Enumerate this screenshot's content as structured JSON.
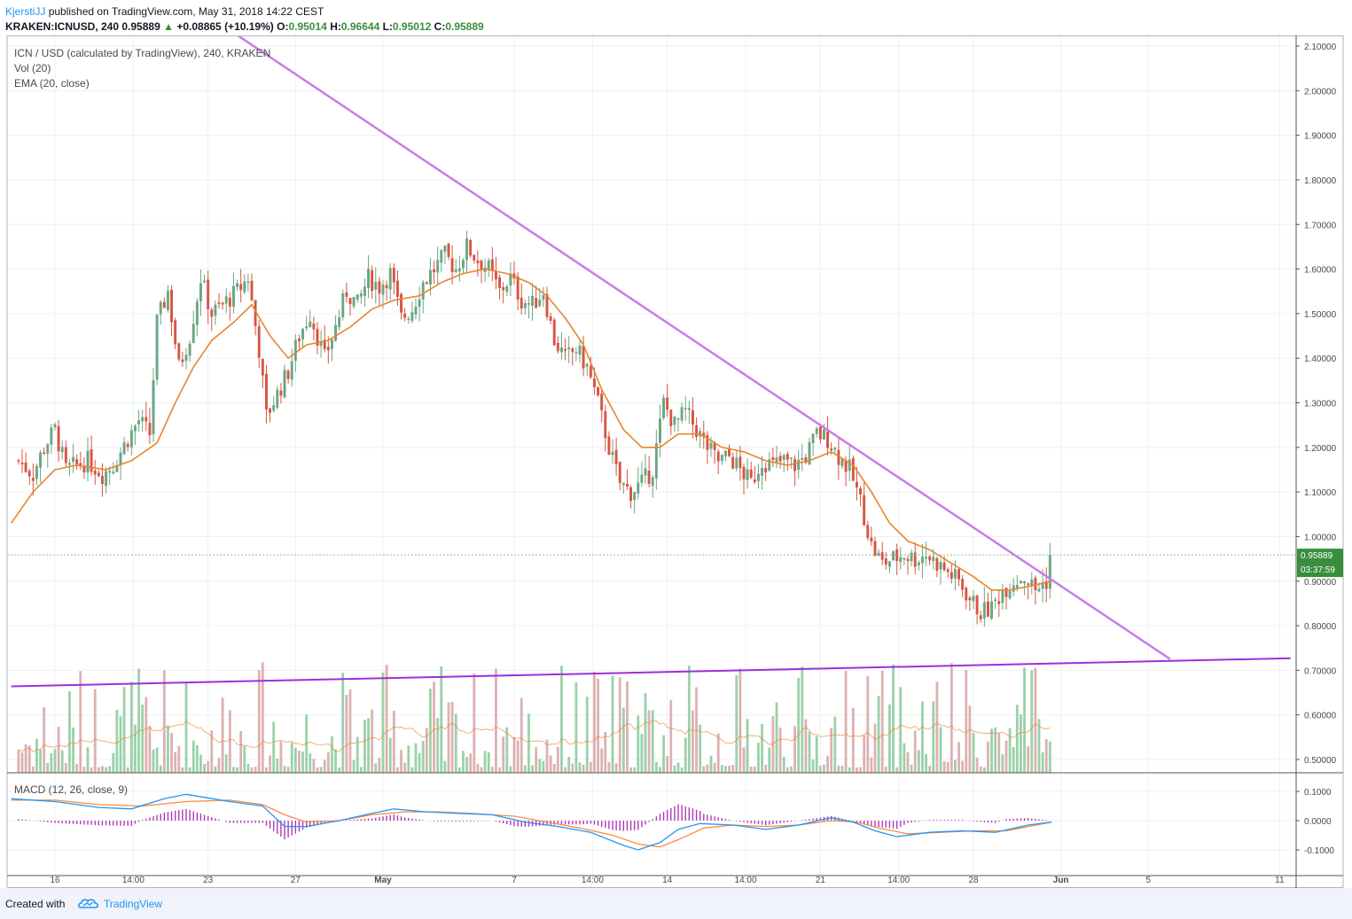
{
  "header": {
    "author": "KjerstiJJ",
    "published": "published on TradingView.com, May 31, 2018 14:22 CEST",
    "symbol_line": "KRAKEN:ICNUSD, 240",
    "last": "0.95889",
    "change": "+0.08865 (+10.19%)",
    "o_label": "O:",
    "o": "0.95014",
    "h_label": "H:",
    "h": "0.96644",
    "l_label": "L:",
    "l": "0.95012",
    "c_label": "C:",
    "c": "0.95889"
  },
  "legend": {
    "main": "ICN / USD (calculated by TradingView), 240, KRAKEN",
    "vol": "Vol (20)",
    "ema": "EMA (20, close)",
    "macd": "MACD (12, 26, close, 9)"
  },
  "price_badge": {
    "price": "0.95889",
    "countdown": "03:37:59"
  },
  "footer": {
    "created": "Created with",
    "brand": "TradingView"
  },
  "colors": {
    "up": "#6ba583",
    "down": "#d75442",
    "vol_up": "#88c99a",
    "vol_down": "#d7a3a3",
    "ema": "#e8852c",
    "trend_down": "#c77dea",
    "trend_support": "#9b30d9",
    "macd": "#2196f3",
    "signal": "#ff8a3d",
    "hist": "#b03ab5",
    "badge": "#388e3c"
  },
  "chart_data": [
    {
      "type": "candlestick",
      "series_name": "ICN / USD",
      "y_ticks": [
        "2.10000",
        "2.00000",
        "1.90000",
        "1.80000",
        "1.70000",
        "1.60000",
        "1.50000",
        "1.40000",
        "1.30000",
        "1.20000",
        "1.10000",
        "1.00000",
        "0.90000",
        "0.80000",
        "0.70000",
        "0.60000",
        "0.50000"
      ],
      "ylim": [
        0.47,
        2.12
      ],
      "x_ticks": [
        "16",
        "14:00",
        "23",
        "27",
        "May",
        "7",
        "14:00",
        "14",
        "14:00",
        "21",
        "14:00",
        "28",
        "Jun",
        "5",
        "11"
      ],
      "x_tick_dates": [
        "2018-04-16",
        "2018-04-19 14:00",
        "2018-04-23",
        "2018-04-27",
        "2018-05-01",
        "2018-05-07",
        "2018-05-10 14:00",
        "2018-05-14",
        "2018-05-17 14:00",
        "2018-05-21",
        "2018-05-24 14:00",
        "2018-05-28",
        "2018-06-01",
        "2018-06-05",
        "2018-06-11"
      ],
      "interval": "240",
      "close_path": [
        [
          "2018-04-14 08:00",
          1.17
        ],
        [
          "2018-04-15 00:00",
          1.14
        ],
        [
          "2018-04-15 12:00",
          1.2
        ],
        [
          "2018-04-16 00:00",
          1.24
        ],
        [
          "2018-04-16 12:00",
          1.15
        ],
        [
          "2018-04-17 00:00",
          1.16
        ],
        [
          "2018-04-17 12:00",
          1.17
        ],
        [
          "2018-04-18 04:00",
          1.14
        ],
        [
          "2018-04-18 16:00",
          1.16
        ],
        [
          "2018-04-19 08:00",
          1.22
        ],
        [
          "2018-04-19 20:00",
          1.26
        ],
        [
          "2018-04-20 08:00",
          1.23
        ],
        [
          "2018-04-20 16:00",
          1.48
        ],
        [
          "2018-04-21 04:00",
          1.55
        ],
        [
          "2018-04-21 16:00",
          1.38
        ],
        [
          "2018-04-22 04:00",
          1.45
        ],
        [
          "2018-04-22 16:00",
          1.58
        ],
        [
          "2018-04-23 04:00",
          1.5
        ],
        [
          "2018-04-23 16:00",
          1.52
        ],
        [
          "2018-04-24 08:00",
          1.55
        ],
        [
          "2018-04-24 20:00",
          1.58
        ],
        [
          "2018-04-25 08:00",
          1.42
        ],
        [
          "2018-04-25 16:00",
          1.27
        ],
        [
          "2018-04-26 04:00",
          1.32
        ],
        [
          "2018-04-26 16:00",
          1.37
        ],
        [
          "2018-04-27 04:00",
          1.45
        ],
        [
          "2018-04-27 16:00",
          1.5
        ],
        [
          "2018-04-28 08:00",
          1.4
        ],
        [
          "2018-04-28 20:00",
          1.47
        ],
        [
          "2018-04-29 08:00",
          1.55
        ],
        [
          "2018-04-29 20:00",
          1.52
        ],
        [
          "2018-04-30 08:00",
          1.58
        ],
        [
          "2018-04-30 20:00",
          1.56
        ],
        [
          "2018-05-01 08:00",
          1.59
        ],
        [
          "2018-05-01 20:00",
          1.49
        ],
        [
          "2018-05-02 08:00",
          1.51
        ],
        [
          "2018-05-02 20:00",
          1.57
        ],
        [
          "2018-05-03 08:00",
          1.6
        ],
        [
          "2018-05-03 20:00",
          1.63
        ],
        [
          "2018-05-04 08:00",
          1.6
        ],
        [
          "2018-05-04 20:00",
          1.65
        ],
        [
          "2018-05-05 08:00",
          1.62
        ],
        [
          "2018-05-05 20:00",
          1.6
        ],
        [
          "2018-05-06 08:00",
          1.55
        ],
        [
          "2018-05-06 20:00",
          1.58
        ],
        [
          "2018-05-07 08:00",
          1.53
        ],
        [
          "2018-05-07 20:00",
          1.52
        ],
        [
          "2018-05-08 08:00",
          1.55
        ],
        [
          "2018-05-08 20:00",
          1.44
        ],
        [
          "2018-05-09 08:00",
          1.4
        ],
        [
          "2018-05-09 20:00",
          1.42
        ],
        [
          "2018-05-10 08:00",
          1.38
        ],
        [
          "2018-05-10 20:00",
          1.3
        ],
        [
          "2018-05-11 08:00",
          1.2
        ],
        [
          "2018-05-11 20:00",
          1.12
        ],
        [
          "2018-05-12 08:00",
          1.1
        ],
        [
          "2018-05-12 20:00",
          1.12
        ],
        [
          "2018-05-13 08:00",
          1.15
        ],
        [
          "2018-05-13 20:00",
          1.3
        ],
        [
          "2018-05-14 08:00",
          1.25
        ],
        [
          "2018-05-14 20:00",
          1.28
        ],
        [
          "2018-05-15 08:00",
          1.24
        ],
        [
          "2018-05-15 20:00",
          1.2
        ],
        [
          "2018-05-16 08:00",
          1.17
        ],
        [
          "2018-05-16 20:00",
          1.18
        ],
        [
          "2018-05-17 08:00",
          1.15
        ],
        [
          "2018-05-17 20:00",
          1.12
        ],
        [
          "2018-05-18 08:00",
          1.17
        ],
        [
          "2018-05-18 20:00",
          1.16
        ],
        [
          "2018-05-19 08:00",
          1.17
        ],
        [
          "2018-05-19 20:00",
          1.16
        ],
        [
          "2018-05-20 08:00",
          1.18
        ],
        [
          "2018-05-20 20:00",
          1.23
        ],
        [
          "2018-05-21 08:00",
          1.22
        ],
        [
          "2018-05-21 20:00",
          1.18
        ],
        [
          "2018-05-22 08:00",
          1.15
        ],
        [
          "2018-05-22 20:00",
          1.08
        ],
        [
          "2018-05-23 08:00",
          0.98
        ],
        [
          "2018-05-23 20:00",
          0.94
        ],
        [
          "2018-05-24 08:00",
          0.95
        ],
        [
          "2018-05-24 20:00",
          0.96
        ],
        [
          "2018-05-25 08:00",
          0.95
        ],
        [
          "2018-05-25 20:00",
          0.96
        ],
        [
          "2018-05-26 08:00",
          0.94
        ],
        [
          "2018-05-26 20:00",
          0.92
        ],
        [
          "2018-05-27 08:00",
          0.9
        ],
        [
          "2018-05-27 20:00",
          0.86
        ],
        [
          "2018-05-28 08:00",
          0.83
        ],
        [
          "2018-05-28 20:00",
          0.84
        ],
        [
          "2018-05-29 08:00",
          0.88
        ],
        [
          "2018-05-29 20:00",
          0.9
        ],
        [
          "2018-05-30 08:00",
          0.91
        ],
        [
          "2018-05-30 20:00",
          0.88
        ],
        [
          "2018-05-31 08:00",
          0.9
        ],
        [
          "2018-05-31 14:00",
          0.95889
        ]
      ],
      "ema_path": [
        [
          "2018-04-14 00:00",
          1.03
        ],
        [
          "2018-04-15 00:00",
          1.1
        ],
        [
          "2018-04-16 00:00",
          1.15
        ],
        [
          "2018-04-17 00:00",
          1.16
        ],
        [
          "2018-04-18 08:00",
          1.15
        ],
        [
          "2018-04-19 12:00",
          1.17
        ],
        [
          "2018-04-20 16:00",
          1.21
        ],
        [
          "2018-04-21 12:00",
          1.3
        ],
        [
          "2018-04-22 08:00",
          1.38
        ],
        [
          "2018-04-23 04:00",
          1.44
        ],
        [
          "2018-04-24 04:00",
          1.48
        ],
        [
          "2018-04-25 00:00",
          1.52
        ],
        [
          "2018-04-25 20:00",
          1.45
        ],
        [
          "2018-04-26 16:00",
          1.4
        ],
        [
          "2018-04-27 12:00",
          1.43
        ],
        [
          "2018-04-28 12:00",
          1.44
        ],
        [
          "2018-04-29 12:00",
          1.47
        ],
        [
          "2018-04-30 12:00",
          1.51
        ],
        [
          "2018-05-01 12:00",
          1.53
        ],
        [
          "2018-05-02 16:00",
          1.54
        ],
        [
          "2018-05-03 16:00",
          1.57
        ],
        [
          "2018-05-04 16:00",
          1.59
        ],
        [
          "2018-05-05 16:00",
          1.6
        ],
        [
          "2018-05-06 16:00",
          1.59
        ],
        [
          "2018-05-07 16:00",
          1.57
        ],
        [
          "2018-05-08 12:00",
          1.54
        ],
        [
          "2018-05-09 08:00",
          1.49
        ],
        [
          "2018-05-10 04:00",
          1.43
        ],
        [
          "2018-05-11 00:00",
          1.33
        ],
        [
          "2018-05-12 00:00",
          1.24
        ],
        [
          "2018-05-12 20:00",
          1.2
        ],
        [
          "2018-05-13 16:00",
          1.2
        ],
        [
          "2018-05-14 12:00",
          1.23
        ],
        [
          "2018-05-15 12:00",
          1.23
        ],
        [
          "2018-05-16 12:00",
          1.2
        ],
        [
          "2018-05-17 12:00",
          1.19
        ],
        [
          "2018-05-18 12:00",
          1.17
        ],
        [
          "2018-05-19 12:00",
          1.16
        ],
        [
          "2018-05-20 12:00",
          1.17
        ],
        [
          "2018-05-21 12:00",
          1.19
        ],
        [
          "2018-05-22 12:00",
          1.16
        ],
        [
          "2018-05-23 08:00",
          1.1
        ],
        [
          "2018-05-24 04:00",
          1.03
        ],
        [
          "2018-05-25 00:00",
          0.99
        ],
        [
          "2018-05-26 00:00",
          0.97
        ],
        [
          "2018-05-27 00:00",
          0.94
        ],
        [
          "2018-05-28 00:00",
          0.91
        ],
        [
          "2018-05-28 20:00",
          0.88
        ],
        [
          "2018-05-29 16:00",
          0.88
        ],
        [
          "2018-05-30 16:00",
          0.89
        ],
        [
          "2018-05-31 14:00",
          0.9
        ]
      ],
      "last_price": 0.95889,
      "trendlines": [
        {
          "name": "descending resistance",
          "from": [
            "2018-04-24 04:00",
            2.13
          ],
          "to": [
            "2018-06-06 00:00",
            0.725
          ]
        },
        {
          "name": "ascending support",
          "from": [
            "2018-04-14 00:00",
            0.664
          ],
          "to": [
            "2018-06-11 12:00",
            0.727
          ]
        }
      ]
    },
    {
      "type": "bar",
      "series_name": "Vol",
      "note": "volume histogram in lower part of main pane, colored by candle direction, with Vol (20) average line"
    },
    {
      "type": "line",
      "series_name": "MACD (12, 26, close, 9)",
      "y_ticks": [
        "0.1000",
        "0.0000",
        "-0.1000"
      ],
      "ylim": [
        -0.15,
        0.155
      ],
      "macd_path": [
        [
          "2018-04-14 00:00",
          0.075
        ],
        [
          "2018-04-16 00:00",
          0.065
        ],
        [
          "2018-04-18 00:00",
          0.045
        ],
        [
          "2018-04-19 12:00",
          0.04
        ],
        [
          "2018-04-21 00:00",
          0.075
        ],
        [
          "2018-04-22 00:00",
          0.09
        ],
        [
          "2018-04-24 00:00",
          0.065
        ],
        [
          "2018-04-25 12:00",
          0.05
        ],
        [
          "2018-04-26 12:00",
          -0.02
        ],
        [
          "2018-04-27 12:00",
          -0.02
        ],
        [
          "2018-04-29 00:00",
          0.0
        ],
        [
          "2018-04-30 12:00",
          0.025
        ],
        [
          "2018-05-01 12:00",
          0.04
        ],
        [
          "2018-05-03 00:00",
          0.03
        ],
        [
          "2018-05-04 12:00",
          0.025
        ],
        [
          "2018-05-06 00:00",
          0.02
        ],
        [
          "2018-05-07 12:00",
          -0.005
        ],
        [
          "2018-05-09 00:00",
          -0.02
        ],
        [
          "2018-05-10 12:00",
          -0.04
        ],
        [
          "2018-05-12 00:00",
          -0.085
        ],
        [
          "2018-05-12 16:00",
          -0.1
        ],
        [
          "2018-05-13 16:00",
          -0.075
        ],
        [
          "2018-05-14 12:00",
          -0.03
        ],
        [
          "2018-05-15 12:00",
          -0.01
        ],
        [
          "2018-05-17 00:00",
          -0.015
        ],
        [
          "2018-05-18 12:00",
          -0.03
        ],
        [
          "2018-05-20 00:00",
          -0.015
        ],
        [
          "2018-05-21 12:00",
          0.01
        ],
        [
          "2018-05-22 12:00",
          -0.005
        ],
        [
          "2018-05-23 12:00",
          -0.035
        ],
        [
          "2018-05-24 12:00",
          -0.055
        ],
        [
          "2018-05-26 00:00",
          -0.04
        ],
        [
          "2018-05-27 12:00",
          -0.035
        ],
        [
          "2018-05-29 00:00",
          -0.04
        ],
        [
          "2018-05-30 12:00",
          -0.015
        ],
        [
          "2018-05-31 14:00",
          -0.005
        ]
      ],
      "signal_path": [
        [
          "2018-04-14 00:00",
          0.07
        ],
        [
          "2018-04-16 00:00",
          0.07
        ],
        [
          "2018-04-18 00:00",
          0.055
        ],
        [
          "2018-04-20 00:00",
          0.05
        ],
        [
          "2018-04-22 00:00",
          0.065
        ],
        [
          "2018-04-24 00:00",
          0.07
        ],
        [
          "2018-04-25 12:00",
          0.055
        ],
        [
          "2018-04-26 12:00",
          0.02
        ],
        [
          "2018-04-27 12:00",
          -0.005
        ],
        [
          "2018-04-29 00:00",
          0.0
        ],
        [
          "2018-04-30 12:00",
          0.02
        ],
        [
          "2018-05-02 00:00",
          0.03
        ],
        [
          "2018-05-03 12:00",
          0.03
        ],
        [
          "2018-05-05 00:00",
          0.025
        ],
        [
          "2018-05-07 00:00",
          0.015
        ],
        [
          "2018-05-08 12:00",
          -0.005
        ],
        [
          "2018-05-10 00:00",
          -0.025
        ],
        [
          "2018-05-11 12:00",
          -0.05
        ],
        [
          "2018-05-12 16:00",
          -0.08
        ],
        [
          "2018-05-13 16:00",
          -0.09
        ],
        [
          "2018-05-14 16:00",
          -0.06
        ],
        [
          "2018-05-15 16:00",
          -0.025
        ],
        [
          "2018-05-17 00:00",
          -0.015
        ],
        [
          "2018-05-18 12:00",
          -0.02
        ],
        [
          "2018-05-20 00:00",
          -0.015
        ],
        [
          "2018-05-21 12:00",
          0.0
        ],
        [
          "2018-05-22 16:00",
          -0.005
        ],
        [
          "2018-05-23 16:00",
          -0.025
        ],
        [
          "2018-05-25 00:00",
          -0.045
        ],
        [
          "2018-05-26 12:00",
          -0.04
        ],
        [
          "2018-05-28 00:00",
          -0.035
        ],
        [
          "2018-05-29 12:00",
          -0.035
        ],
        [
          "2018-05-31 14:00",
          -0.005
        ]
      ]
    }
  ]
}
